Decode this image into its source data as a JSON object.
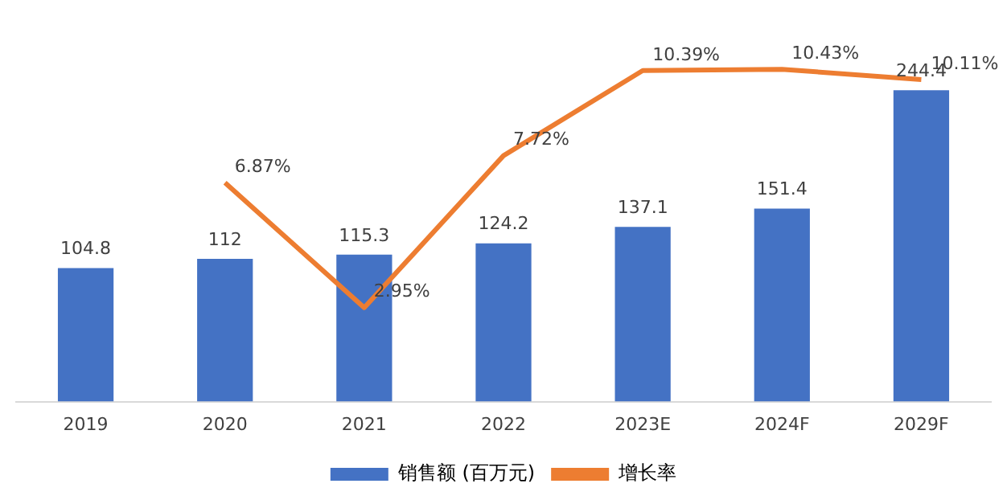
{
  "chart_data": {
    "type": "bar",
    "categories": [
      "2019",
      "2020",
      "2021",
      "2022",
      "2023E",
      "2024F",
      "2029F"
    ],
    "series": [
      {
        "name": "销售额 (百万元)",
        "color": "#4472c4",
        "values": [
          104.8,
          112,
          115.3,
          124.2,
          137.1,
          151.4,
          244.4
        ]
      },
      {
        "name": "增长率",
        "type": "line",
        "axis": "y2",
        "color": "#ed7d31",
        "values": [
          null,
          6.87,
          2.95,
          7.72,
          10.39,
          10.43,
          10.11
        ],
        "value_labels": [
          null,
          "6.87%",
          "2.95%",
          "7.72%",
          "10.39%",
          "10.43%",
          "10.11%"
        ]
      }
    ],
    "tick_labels": "x",
    "data_labels": true,
    "legend": "bottom",
    "grid": false,
    "marker": "none"
  }
}
